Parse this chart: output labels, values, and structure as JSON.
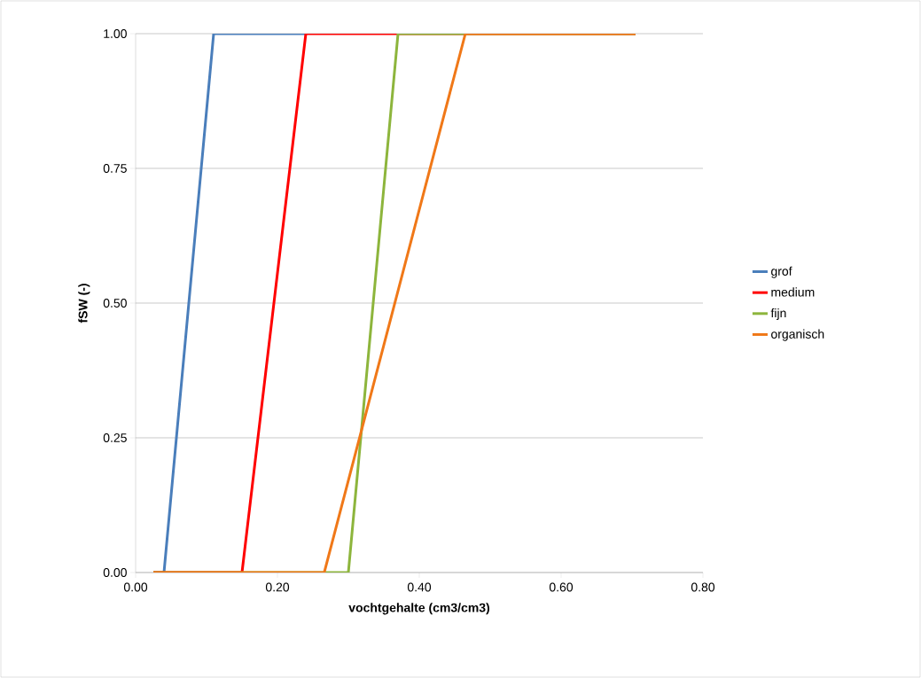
{
  "chart_data": {
    "type": "line",
    "xlabel": "vochtgehalte (cm3/cm3)",
    "ylabel": "fSW (-)",
    "xlim": [
      0,
      0.8
    ],
    "xticks": [
      {
        "value": 0,
        "label": "0.00"
      },
      {
        "value": 0.2,
        "label": "0.20"
      },
      {
        "value": 0.4,
        "label": "0.40"
      },
      {
        "value": 0.6,
        "label": "0.60"
      },
      {
        "value": 0.8,
        "label": "0.80"
      }
    ],
    "ylim": [
      0,
      1
    ],
    "yticks": [
      {
        "value": 0,
        "label": "0.00"
      },
      {
        "value": 0.25,
        "label": "0.25"
      },
      {
        "value": 0.5,
        "label": "0.50"
      },
      {
        "value": 0.75,
        "label": "0.75"
      },
      {
        "value": 1,
        "label": "1.00"
      }
    ],
    "grid": "y",
    "legend": "right",
    "marker": "none",
    "series": [
      {
        "name": "grof",
        "color": "#4a7ebb",
        "x": [
          0.025,
          0.04,
          0.11,
          0.24
        ],
        "values": [
          0,
          0,
          1,
          1
        ]
      },
      {
        "name": "medium",
        "color": "#ff0000",
        "x": [
          0.025,
          0.15,
          0.24,
          0.705
        ],
        "values": [
          0,
          0,
          1,
          1
        ]
      },
      {
        "name": "fijn",
        "color": "#8db53c",
        "x": [
          0.025,
          0.3,
          0.37,
          0.705
        ],
        "values": [
          0,
          0,
          1,
          1
        ]
      },
      {
        "name": "organisch",
        "color": "#f07818",
        "x": [
          0.025,
          0.266,
          0.465,
          0.705
        ],
        "values": [
          0,
          0,
          1,
          1
        ]
      }
    ]
  }
}
